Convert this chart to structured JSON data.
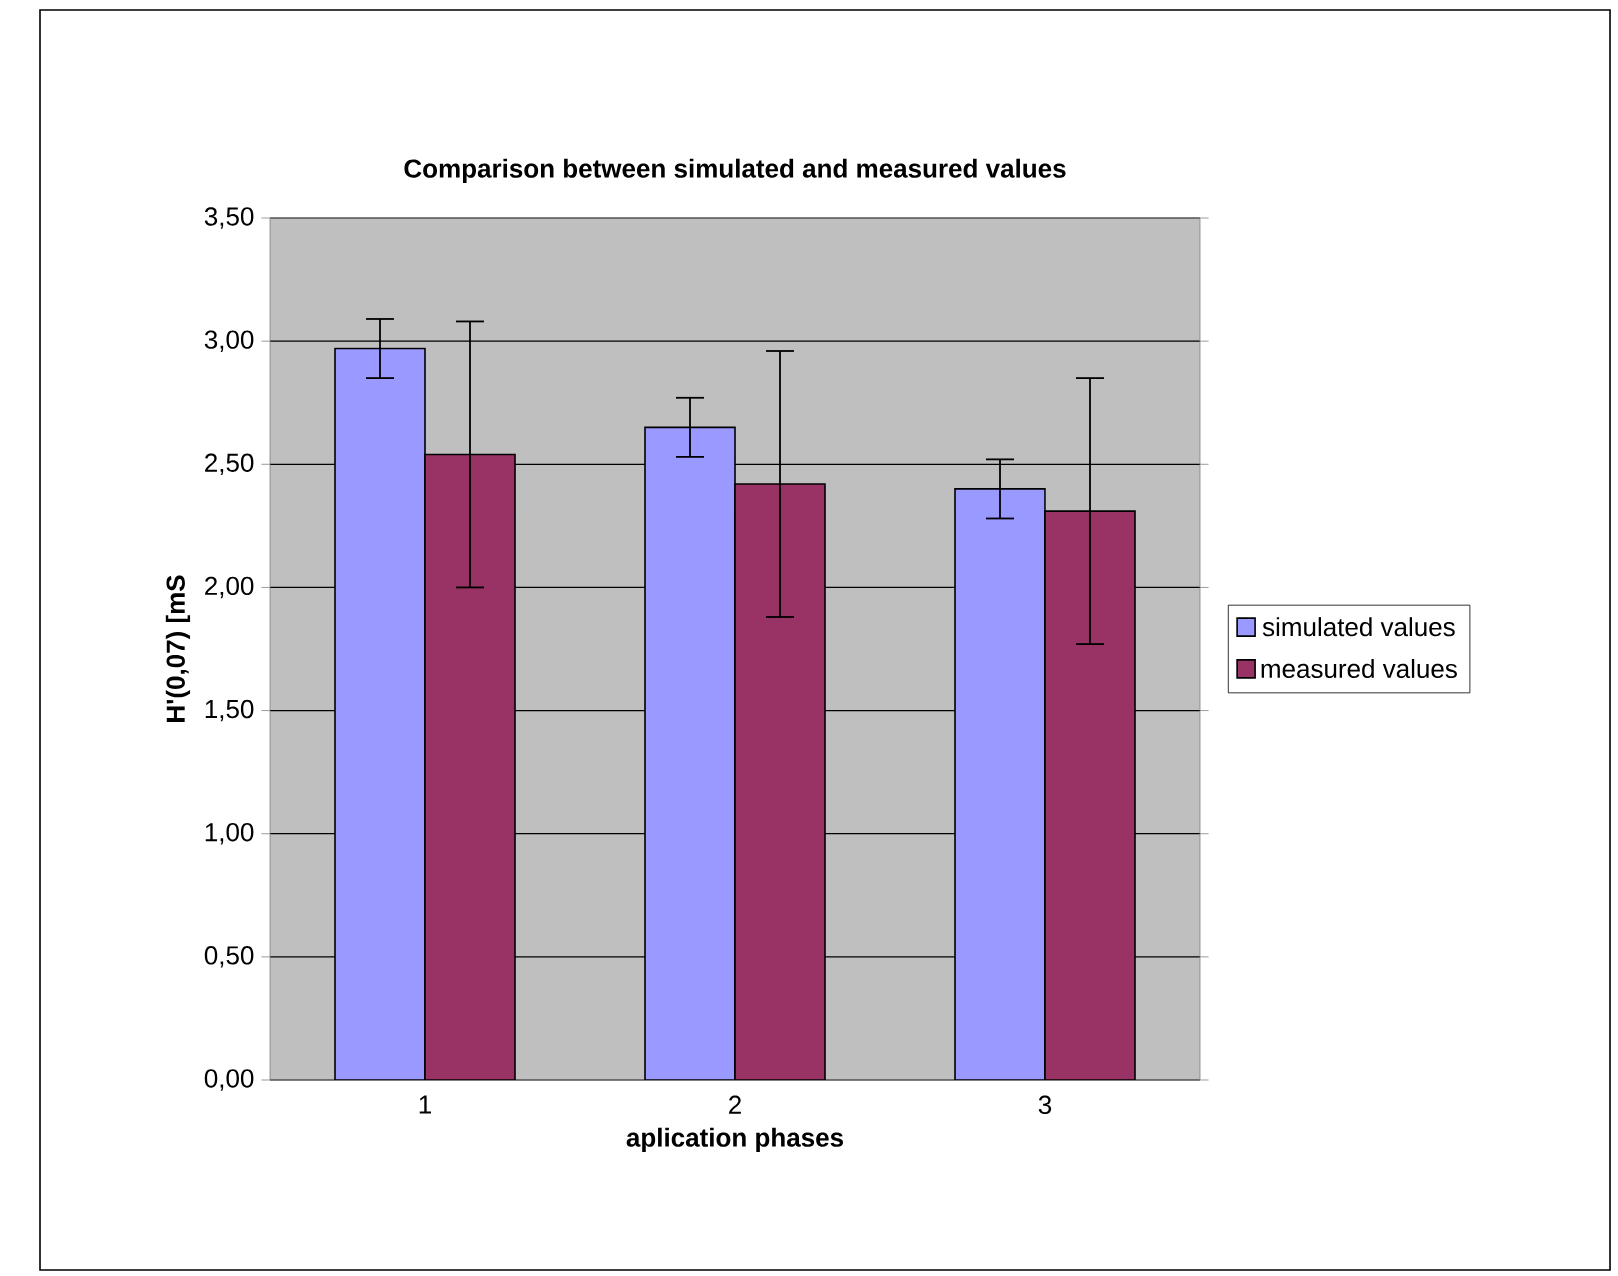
{
  "chart_data": {
    "type": "bar",
    "title": "Comparison between simulated and measured values",
    "xlabel": "aplication phases",
    "ylabel": "H'(0,07) [mS",
    "categories": [
      "1",
      "2",
      "3"
    ],
    "series": [
      {
        "name": "simulated values",
        "color": "#9999ff",
        "values": [
          2.97,
          2.65,
          2.4
        ],
        "errors": [
          0.12,
          0.12,
          0.12
        ]
      },
      {
        "name": "measured values",
        "color": "#993366",
        "values": [
          2.54,
          2.42,
          2.31
        ],
        "errors": [
          0.54,
          0.54,
          0.54
        ]
      }
    ],
    "ylim": [
      0,
      3.5
    ],
    "yticks": [
      {
        "value": 0,
        "label": "0,00"
      },
      {
        "value": 0.5,
        "label": "0,50"
      },
      {
        "value": 1,
        "label": "1,00"
      },
      {
        "value": 1.5,
        "label": "1,50"
      },
      {
        "value": 2,
        "label": "2,00"
      },
      {
        "value": 2.5,
        "label": "2,50"
      },
      {
        "value": 3,
        "label": "3,00"
      },
      {
        "value": 3.5,
        "label": "3,50"
      }
    ],
    "grid": "y",
    "legend": "right"
  }
}
